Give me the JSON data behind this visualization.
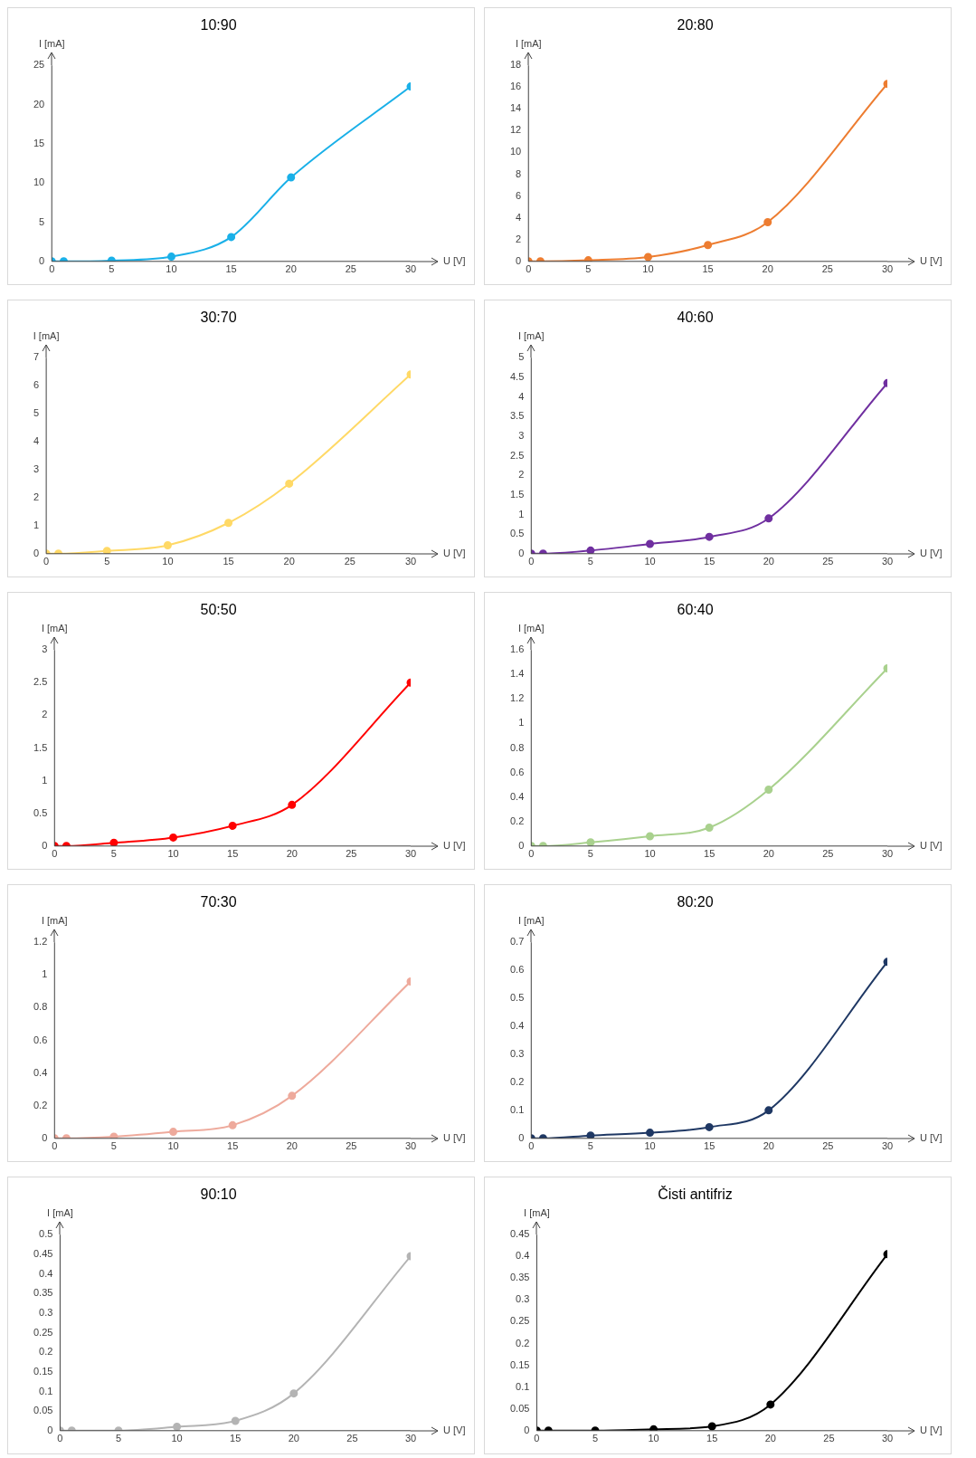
{
  "chart_data": [
    {
      "type": "line",
      "title": "10:90",
      "xlabel": "U [V]",
      "ylabel": "I [mA]",
      "x": [
        0,
        1,
        5,
        10,
        15,
        20,
        30
      ],
      "series": [
        {
          "color": "#1ab0e8",
          "values": [
            0,
            0,
            0.1,
            0.6,
            3.1,
            10.7,
            22.3
          ]
        }
      ],
      "xlim": [
        0,
        30
      ],
      "xticks": [
        0,
        5,
        10,
        15,
        20,
        25,
        30
      ],
      "ylim": [
        0,
        25
      ],
      "yticks": [
        0,
        5,
        10,
        15,
        20,
        25
      ],
      "marker": "circle",
      "grid": false,
      "legend": false
    },
    {
      "type": "line",
      "title": "20:80",
      "xlabel": "U [V]",
      "ylabel": "I [mA]",
      "x": [
        0,
        1,
        5,
        10,
        15,
        20,
        30
      ],
      "series": [
        {
          "color": "#ed7d31",
          "values": [
            0,
            0,
            0.1,
            0.4,
            1.5,
            3.6,
            16.3
          ]
        }
      ],
      "xlim": [
        0,
        30
      ],
      "xticks": [
        0,
        5,
        10,
        15,
        20,
        25,
        30
      ],
      "ylim": [
        0,
        18
      ],
      "yticks": [
        0,
        2,
        4,
        6,
        8,
        10,
        12,
        14,
        16,
        18
      ],
      "marker": "circle",
      "grid": false,
      "legend": false
    },
    {
      "type": "line",
      "title": "30:70",
      "xlabel": "U [V]",
      "ylabel": "I [mA]",
      "x": [
        0,
        1,
        5,
        10,
        15,
        20,
        30
      ],
      "series": [
        {
          "color": "#ffd966",
          "values": [
            0,
            0,
            0.1,
            0.3,
            1.1,
            2.5,
            6.4
          ]
        }
      ],
      "xlim": [
        0,
        30
      ],
      "xticks": [
        0,
        5,
        10,
        15,
        20,
        25,
        30
      ],
      "ylim": [
        0,
        7
      ],
      "yticks": [
        0,
        1,
        2,
        3,
        4,
        5,
        6,
        7
      ],
      "marker": "circle",
      "grid": false,
      "legend": false
    },
    {
      "type": "line",
      "title": "40:60",
      "xlabel": "U [V]",
      "ylabel": "I [mA]",
      "x": [
        0,
        1,
        5,
        10,
        15,
        20,
        30
      ],
      "series": [
        {
          "color": "#7030a0",
          "values": [
            0,
            0,
            0.08,
            0.25,
            0.43,
            0.9,
            4.35
          ]
        }
      ],
      "xlim": [
        0,
        30
      ],
      "xticks": [
        0,
        5,
        10,
        15,
        20,
        25,
        30
      ],
      "ylim": [
        0,
        5
      ],
      "yticks": [
        0,
        0.5,
        1,
        1.5,
        2,
        2.5,
        3,
        3.5,
        4,
        4.5,
        5
      ],
      "marker": "circle",
      "grid": false,
      "legend": false
    },
    {
      "type": "line",
      "title": "50:50",
      "xlabel": "U [V]",
      "ylabel": "I [mA]",
      "x": [
        0,
        1,
        5,
        10,
        15,
        20,
        30
      ],
      "series": [
        {
          "color": "#ff0000",
          "values": [
            0,
            0,
            0.05,
            0.13,
            0.31,
            0.63,
            2.5
          ]
        }
      ],
      "xlim": [
        0,
        30
      ],
      "xticks": [
        0,
        5,
        10,
        15,
        20,
        25,
        30
      ],
      "ylim": [
        0,
        3
      ],
      "yticks": [
        0,
        0.5,
        1,
        1.5,
        2,
        2.5,
        3
      ],
      "marker": "circle",
      "grid": false,
      "legend": false
    },
    {
      "type": "line",
      "title": "60:40",
      "xlabel": "U [V]",
      "ylabel": "I [mA]",
      "x": [
        0,
        1,
        5,
        10,
        15,
        20,
        30
      ],
      "series": [
        {
          "color": "#a9d18e",
          "values": [
            0,
            0,
            0.03,
            0.08,
            0.15,
            0.46,
            1.45
          ]
        }
      ],
      "xlim": [
        0,
        30
      ],
      "xticks": [
        0,
        5,
        10,
        15,
        20,
        25,
        30
      ],
      "ylim": [
        0,
        1.6
      ],
      "yticks": [
        0,
        0.2,
        0.4,
        0.6,
        0.8,
        1,
        1.2,
        1.4,
        1.6
      ],
      "marker": "circle",
      "grid": false,
      "legend": false
    },
    {
      "type": "line",
      "title": "70:30",
      "xlabel": "U [V]",
      "ylabel": "I [mA]",
      "x": [
        0,
        1,
        5,
        10,
        15,
        20,
        30
      ],
      "series": [
        {
          "color": "#eeaa9c",
          "values": [
            0,
            0,
            0.01,
            0.04,
            0.08,
            0.26,
            0.96
          ]
        }
      ],
      "xlim": [
        0,
        30
      ],
      "xticks": [
        0,
        5,
        10,
        15,
        20,
        25,
        30
      ],
      "ylim": [
        0,
        1.2
      ],
      "yticks": [
        0,
        0.2,
        0.4,
        0.6,
        0.8,
        1,
        1.2
      ],
      "marker": "circle",
      "grid": false,
      "legend": false
    },
    {
      "type": "line",
      "title": "80:20",
      "xlabel": "U [V]",
      "ylabel": "I [mA]",
      "x": [
        0,
        1,
        5,
        10,
        15,
        20,
        30
      ],
      "series": [
        {
          "color": "#1f3864",
          "values": [
            0,
            0,
            0.01,
            0.02,
            0.04,
            0.1,
            0.63
          ]
        }
      ],
      "xlim": [
        0,
        30
      ],
      "xticks": [
        0,
        5,
        10,
        15,
        20,
        25,
        30
      ],
      "ylim": [
        0,
        0.7
      ],
      "yticks": [
        0,
        0.1,
        0.2,
        0.3,
        0.4,
        0.5,
        0.6,
        0.7
      ],
      "marker": "circle",
      "grid": false,
      "legend": false
    },
    {
      "type": "line",
      "title": "90:10",
      "xlabel": "U [V]",
      "ylabel": "I [mA]",
      "x": [
        0,
        1,
        5,
        10,
        15,
        20,
        30
      ],
      "series": [
        {
          "color": "#b4b4b4",
          "values": [
            0,
            0,
            0,
            0.01,
            0.025,
            0.095,
            0.445
          ]
        }
      ],
      "xlim": [
        0,
        30
      ],
      "xticks": [
        0,
        5,
        10,
        15,
        20,
        25,
        30
      ],
      "ylim": [
        0,
        0.5
      ],
      "yticks": [
        0,
        0.05,
        0.1,
        0.15,
        0.2,
        0.25,
        0.3,
        0.35,
        0.4,
        0.45,
        0.5
      ],
      "marker": "circle",
      "grid": false,
      "legend": false
    },
    {
      "type": "line",
      "title": "Čisti antifriz",
      "xlabel": "U [V]",
      "ylabel": "I [mA]",
      "x": [
        0,
        1,
        5,
        10,
        15,
        20,
        30
      ],
      "series": [
        {
          "color": "#000000",
          "values": [
            0,
            0,
            0,
            0.003,
            0.01,
            0.06,
            0.405
          ]
        }
      ],
      "xlim": [
        0,
        30
      ],
      "xticks": [
        0,
        5,
        10,
        15,
        20,
        25,
        30
      ],
      "ylim": [
        0,
        0.45
      ],
      "yticks": [
        0,
        0.05,
        0.1,
        0.15,
        0.2,
        0.25,
        0.3,
        0.35,
        0.4,
        0.45
      ],
      "marker": "circle",
      "grid": false,
      "legend": false
    }
  ]
}
